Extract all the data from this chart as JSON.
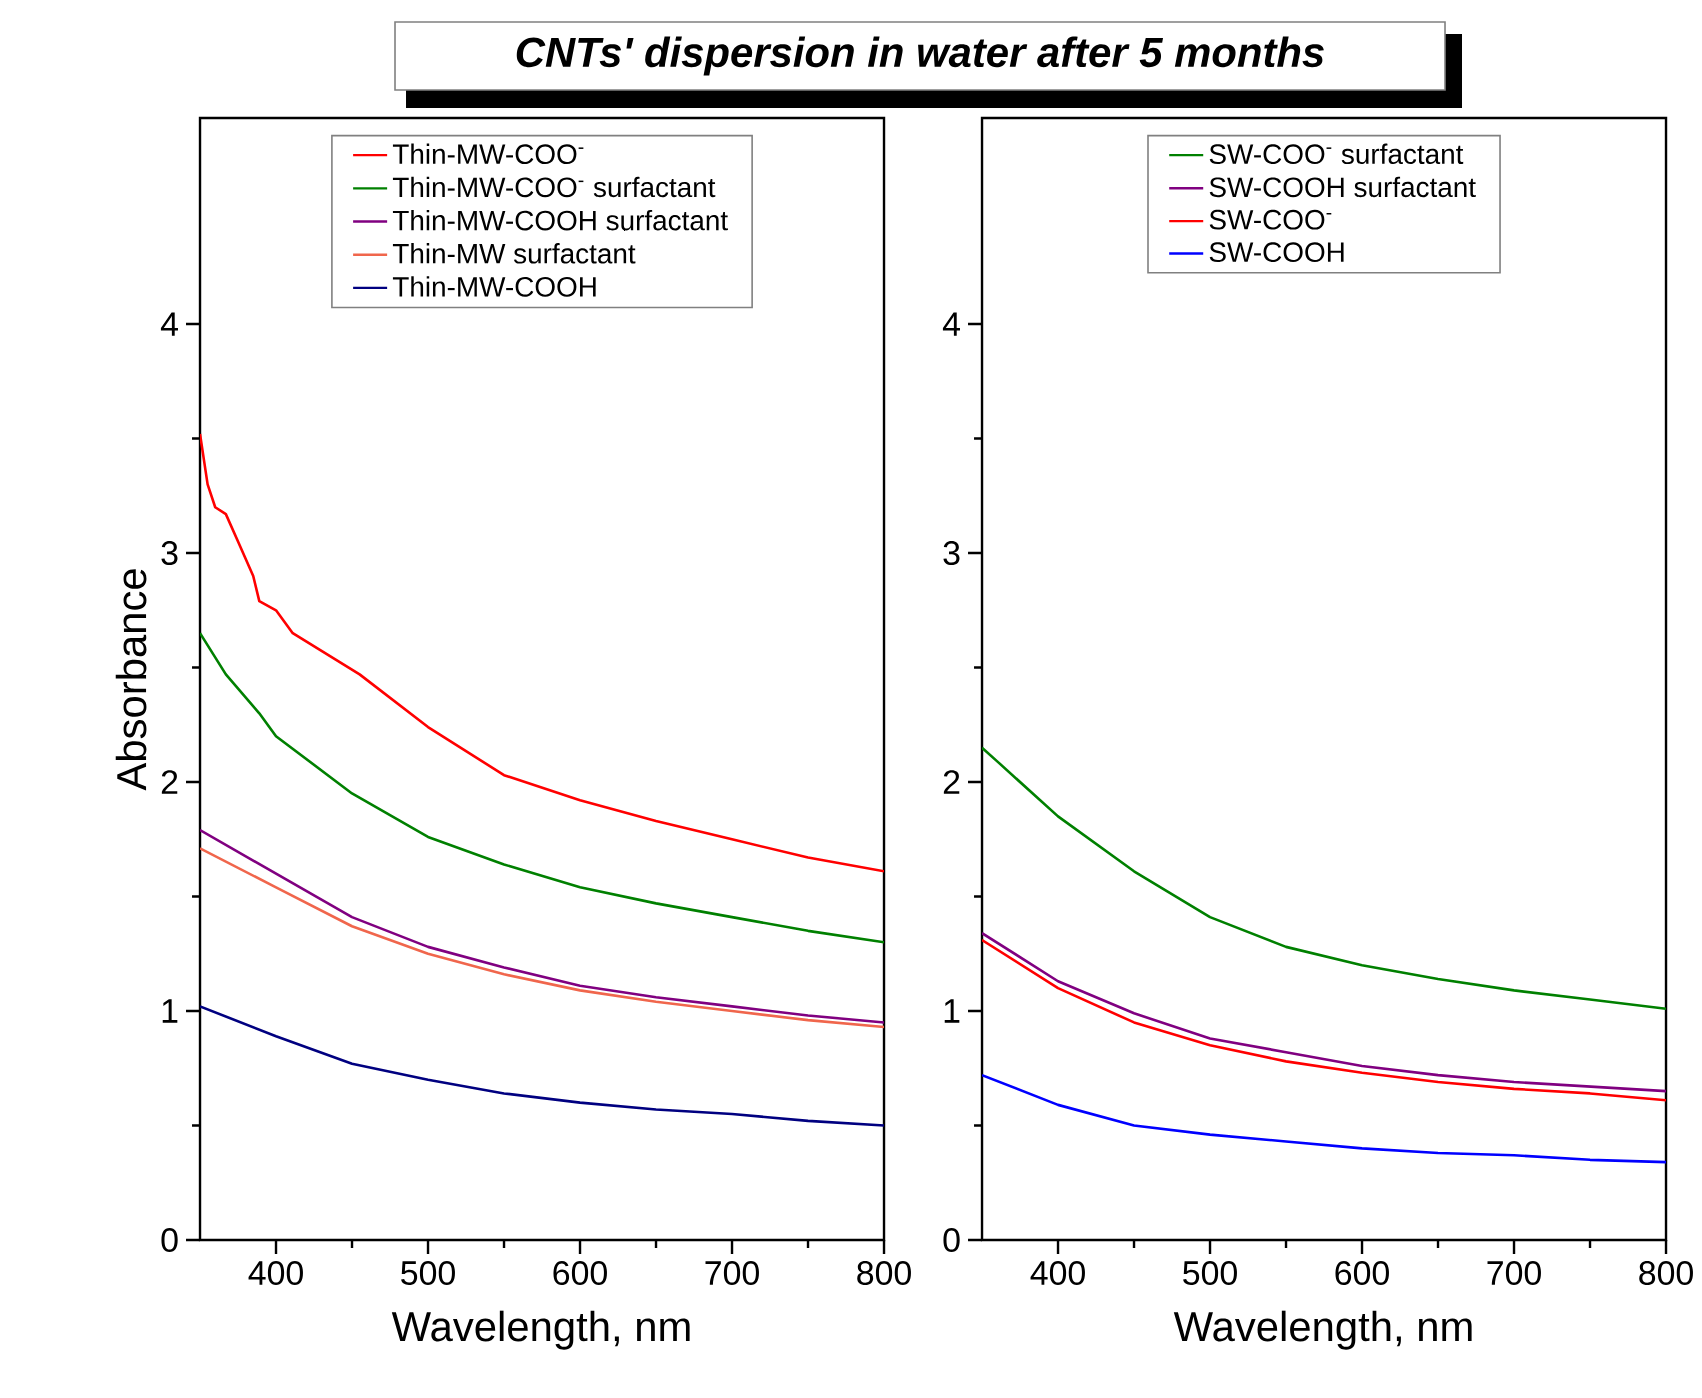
{
  "chart_data": [
    {
      "type": "line",
      "title": "CNTs' dispersion in water after 5 months",
      "xlabel": "Wavelength, nm",
      "ylabel": "Absorbance",
      "xlim": [
        350,
        800
      ],
      "ylim": [
        0,
        4.9
      ],
      "xticks": [
        400,
        500,
        600,
        700,
        800
      ],
      "yticks": [
        0,
        1,
        2,
        3,
        4
      ],
      "legend": "top",
      "x": [
        350,
        400,
        450,
        500,
        550,
        600,
        650,
        700,
        750,
        800
      ],
      "series": [
        {
          "name": "Thin-MW-COO$^{-}$",
          "color": "#ff0000",
          "x": [
            350,
            355,
            360,
            367,
            375,
            385,
            389,
            400,
            411,
            455,
            500,
            550,
            600,
            650,
            700,
            750,
            800
          ],
          "values": [
            3.52,
            3.3,
            3.2,
            3.17,
            3.05,
            2.9,
            2.79,
            2.75,
            2.65,
            2.47,
            2.24,
            2.03,
            1.92,
            1.83,
            1.75,
            1.67,
            1.61
          ]
        },
        {
          "name": "Thin-MW-COO$^{-}$ surfactant",
          "color": "#008000",
          "x": [
            350,
            367,
            389,
            400,
            450,
            500,
            550,
            600,
            650,
            700,
            750,
            800
          ],
          "values": [
            2.65,
            2.47,
            2.3,
            2.2,
            1.95,
            1.76,
            1.64,
            1.54,
            1.47,
            1.41,
            1.35,
            1.3
          ]
        },
        {
          "name": "Thin-MW-COOH surfactant",
          "color": "#800080",
          "values": [
            1.79,
            1.6,
            1.41,
            1.28,
            1.19,
            1.11,
            1.06,
            1.02,
            0.98,
            0.95
          ]
        },
        {
          "name": "Thin-MW surfactant",
          "color": "#f0664c",
          "values": [
            1.71,
            1.54,
            1.37,
            1.25,
            1.16,
            1.09,
            1.04,
            1.0,
            0.96,
            0.93
          ]
        },
        {
          "name": "Thin-MW-COOH",
          "color": "#000080",
          "values": [
            1.02,
            0.89,
            0.77,
            0.7,
            0.64,
            0.6,
            0.57,
            0.55,
            0.52,
            0.5
          ]
        }
      ]
    },
    {
      "type": "line",
      "xlabel": "Wavelength, nm",
      "xlim": [
        350,
        800
      ],
      "ylim": [
        0,
        4.9
      ],
      "xticks": [
        400,
        500,
        600,
        700,
        800
      ],
      "yticks": [
        0,
        1,
        2,
        3,
        4
      ],
      "legend": "top",
      "x": [
        350,
        400,
        450,
        500,
        550,
        600,
        650,
        700,
        750,
        800
      ],
      "series": [
        {
          "name": "SW-COO$^{-}$ surfactant",
          "color": "#008000",
          "x": [
            350,
            360,
            400,
            450,
            500,
            550,
            600,
            650,
            700,
            750,
            800
          ],
          "values": [
            2.15,
            2.09,
            1.85,
            1.61,
            1.41,
            1.28,
            1.2,
            1.14,
            1.09,
            1.05,
            1.01
          ]
        },
        {
          "name": "SW-COOH surfactant",
          "color": "#800080",
          "values": [
            1.34,
            1.13,
            0.99,
            0.88,
            0.82,
            0.76,
            0.72,
            0.69,
            0.67,
            0.65
          ]
        },
        {
          "name": "SW-COO$^{-}$",
          "color": "#ff0000",
          "values": [
            1.31,
            1.1,
            0.95,
            0.85,
            0.78,
            0.73,
            0.69,
            0.66,
            0.64,
            0.61
          ]
        },
        {
          "name": "SW-COOH",
          "color": "#0000ff",
          "values": [
            0.72,
            0.59,
            0.5,
            0.46,
            0.43,
            0.4,
            0.38,
            0.37,
            0.35,
            0.34
          ]
        }
      ]
    }
  ]
}
